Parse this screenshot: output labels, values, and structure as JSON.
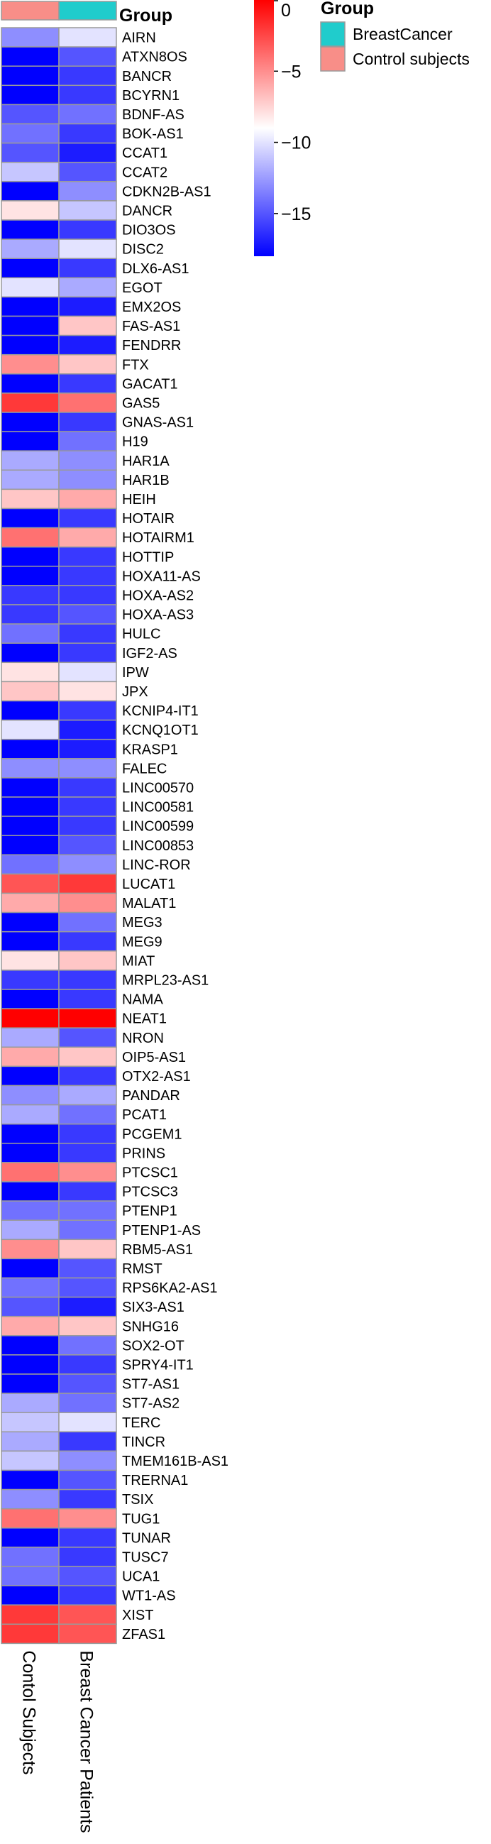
{
  "chart_data": {
    "type": "heatmap",
    "title": "",
    "annotation_title": "Group",
    "columns": [
      {
        "name": "Contol Subjects",
        "group": "Control subjects"
      },
      {
        "name": "Breast Cancer Patients",
        "group": "BreastCancer"
      }
    ],
    "rows": [
      "AIRN",
      "ATXN8OS",
      "BANCR",
      "BCYRN1",
      "BDNF-AS",
      "BOK-AS1",
      "CCAT1",
      "CCAT2",
      "CDKN2B-AS1",
      "DANCR",
      "DIO3OS",
      "DISC2",
      "DLX6-AS1",
      "EGOT",
      "EMX2OS",
      "FAS-AS1",
      "FENDRR",
      "FTX",
      "GACAT1",
      "GAS5",
      "GNAS-AS1",
      "H19",
      "HAR1A",
      "HAR1B",
      "HEIH",
      "HOTAIR",
      "HOTAIRM1",
      "HOTTIP",
      "HOXA11-AS",
      "HOXA-AS2",
      "HOXA-AS3",
      "HULC",
      "IGF2-AS",
      "IPW",
      "JPX",
      "KCNIP4-IT1",
      "KCNQ1OT1",
      "KRASP1",
      "FALEC",
      "LINC00570",
      "LINC00581",
      "LINC00599",
      "LINC00853",
      "LINC-ROR",
      "LUCAT1",
      "MALAT1",
      "MEG3",
      "MEG9",
      "MIAT",
      "MRPL23-AS1",
      "NAMA",
      "NEAT1",
      "NRON",
      "OIP5-AS1",
      "OTX2-AS1",
      "PANDAR",
      "PCAT1",
      "PCGEM1",
      "PRINS",
      "PTCSC1",
      "PTCSC3",
      "PTENP1",
      "PTENP1-AS",
      "RBM5-AS1",
      "RMST",
      "RPS6KA2-AS1",
      "SIX3-AS1",
      "SNHG16",
      "SOX2-OT",
      "SPRY4-IT1",
      "ST7-AS1",
      "ST7-AS2",
      "TERC",
      "TINCR",
      "TMEM161B-AS1",
      "TRERNA1",
      "TSIX",
      "TUG1",
      "TUNAR",
      "TUSC7",
      "UCA1",
      "WT1-AS",
      "XIST",
      "ZFAS1"
    ],
    "values": [
      [
        -13,
        -10
      ],
      [
        -18,
        -15
      ],
      [
        -18,
        -16
      ],
      [
        -18,
        -16
      ],
      [
        -15,
        -14
      ],
      [
        -14,
        -16
      ],
      [
        -15,
        -17
      ],
      [
        -11,
        -15
      ],
      [
        -18,
        -13
      ],
      [
        -8,
        -11
      ],
      [
        -18,
        -16
      ],
      [
        -12,
        -10
      ],
      [
        -18,
        -16
      ],
      [
        -10,
        -12
      ],
      [
        -18,
        -17
      ],
      [
        -18,
        -7
      ],
      [
        -18,
        -17
      ],
      [
        -5,
        -7
      ],
      [
        -18,
        -16
      ],
      [
        -2,
        -4
      ],
      [
        -18,
        -16
      ],
      [
        -18,
        -14
      ],
      [
        -12,
        -13
      ],
      [
        -12,
        -13
      ],
      [
        -7,
        -6
      ],
      [
        -18,
        -16
      ],
      [
        -4,
        -6
      ],
      [
        -18,
        -16
      ],
      [
        -18,
        -16
      ],
      [
        -16,
        -16
      ],
      [
        -16,
        -15
      ],
      [
        -14,
        -16
      ],
      [
        -18,
        -16
      ],
      [
        -8,
        -10
      ],
      [
        -7,
        -8
      ],
      [
        -18,
        -16
      ],
      [
        -10,
        -17
      ],
      [
        -18,
        -17
      ],
      [
        -13,
        -13
      ],
      [
        -18,
        -16
      ],
      [
        -18,
        -16
      ],
      [
        -18,
        -16
      ],
      [
        -18,
        -15
      ],
      [
        -14,
        -13
      ],
      [
        -3,
        -2
      ],
      [
        -6,
        -5
      ],
      [
        -18,
        -14
      ],
      [
        -18,
        -16
      ],
      [
        -8,
        -7
      ],
      [
        -16,
        -16
      ],
      [
        -18,
        -16
      ],
      [
        0,
        0
      ],
      [
        -12,
        -15
      ],
      [
        -6,
        -7
      ],
      [
        -18,
        -16
      ],
      [
        -13,
        -12
      ],
      [
        -12,
        -14
      ],
      [
        -18,
        -16
      ],
      [
        -18,
        -16
      ],
      [
        -4,
        -5
      ],
      [
        -18,
        -16
      ],
      [
        -14,
        -14
      ],
      [
        -12,
        -14
      ],
      [
        -5,
        -7
      ],
      [
        -18,
        -15
      ],
      [
        -14,
        -15
      ],
      [
        -15,
        -17
      ],
      [
        -6,
        -7
      ],
      [
        -18,
        -14
      ],
      [
        -18,
        -16
      ],
      [
        -18,
        -15
      ],
      [
        -12,
        -14
      ],
      [
        -11,
        -10
      ],
      [
        -12,
        -16
      ],
      [
        -11,
        -13
      ],
      [
        -18,
        -15
      ],
      [
        -13,
        -16
      ],
      [
        -4,
        -5
      ],
      [
        -18,
        -16
      ],
      [
        -14,
        -16
      ],
      [
        -14,
        -15
      ],
      [
        -18,
        -16
      ],
      [
        -2,
        -3
      ],
      [
        -2,
        -3
      ]
    ],
    "colorbar": {
      "min": -18,
      "max": 0,
      "ticks": [
        0,
        -5,
        -10,
        -15
      ],
      "tick_labels": [
        "0",
        "−5",
        "−10",
        "−15"
      ]
    },
    "legend": {
      "title": "Group",
      "entries": [
        {
          "label": "BreastCancer",
          "color": "#20cccc"
        },
        {
          "label": "Control subjects",
          "color": "#f88e88"
        }
      ]
    },
    "colors": {
      "low": "#0000ff",
      "mid": "#ffffff",
      "high": "#ff0000",
      "cell_border": "#9a9a9a"
    },
    "grid": false
  }
}
